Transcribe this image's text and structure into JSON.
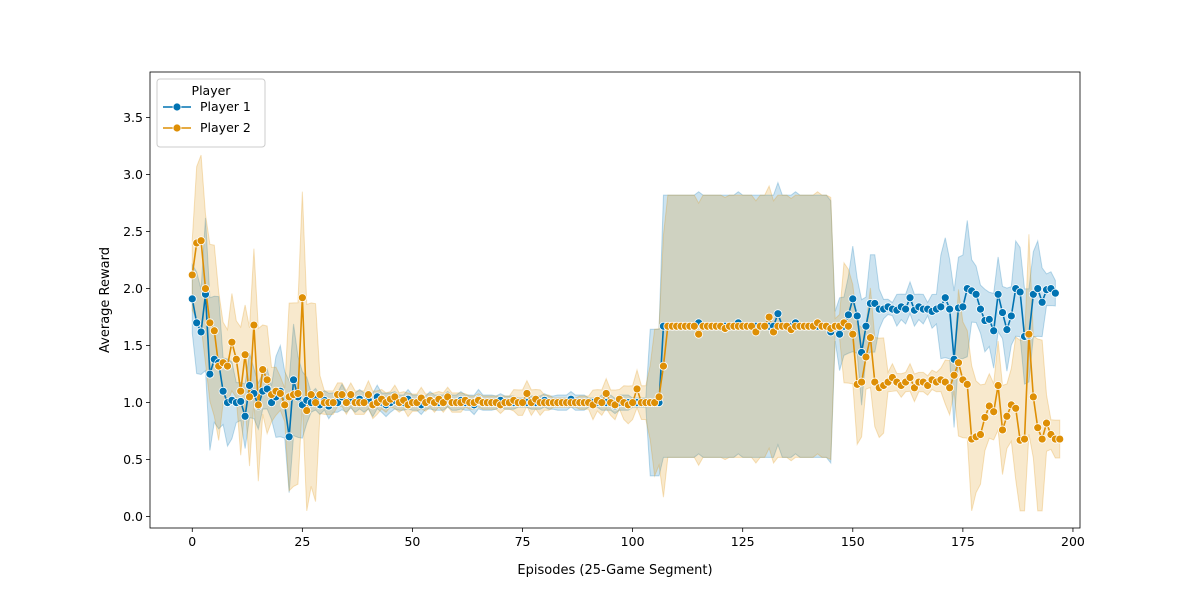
{
  "chart_data": {
    "type": "line",
    "title": "",
    "xlabel": "Episodes (25-Game Segment)",
    "ylabel": "Average Reward",
    "xlim": [
      -9.6,
      201.6
    ],
    "ylim": [
      -0.1,
      3.9
    ],
    "xticks": [
      0,
      25,
      50,
      75,
      100,
      125,
      150,
      175,
      200
    ],
    "yticks": [
      0.0,
      0.5,
      1.0,
      1.5,
      2.0,
      2.5,
      3.0,
      3.5
    ],
    "grid": false,
    "legend": {
      "title": "Player",
      "placement": "top-left"
    },
    "series": [
      {
        "name": "Player 1",
        "color": "#0173b2",
        "values": [
          1.91,
          1.7,
          1.62,
          1.95,
          1.25,
          1.38,
          1.35,
          1.1,
          1.0,
          1.02,
          1.0,
          1.01,
          0.88,
          1.15,
          1.08,
          0.97,
          1.1,
          1.12,
          1.0,
          1.05,
          1.1,
          0.98,
          0.7,
          1.2,
          1.05,
          0.98,
          1.02,
          1.0,
          1.03,
          0.98,
          1.02,
          0.97,
          1.0,
          1.0,
          1.05,
          1.0,
          1.02,
          1.0,
          1.03,
          1.0,
          1.02,
          0.98,
          1.05,
          1.0,
          0.98,
          1.0,
          1.02,
          1.0,
          1.0,
          1.03,
          1.0,
          1.0,
          0.98,
          1.0,
          1.02,
          1.0,
          1.0,
          1.0,
          1.03,
          1.0,
          1.0,
          1.02,
          1.0,
          1.0,
          0.98,
          1.03,
          1.0,
          1.0,
          1.0,
          1.0,
          1.02,
          1.0,
          1.0,
          1.0,
          1.0,
          1.0,
          1.0,
          1.0,
          1.0,
          1.0,
          1.02,
          1.0,
          1.0,
          1.0,
          1.0,
          1.0,
          1.03,
          1.0,
          1.0,
          1.0,
          1.0,
          1.0,
          1.0,
          1.0,
          1.0,
          1.0,
          0.97,
          1.0,
          1.0,
          1.0,
          1.0,
          1.0,
          1.0,
          1.0,
          1.0,
          1.0,
          1.0,
          1.67,
          1.67,
          1.67,
          1.67,
          1.67,
          1.67,
          1.67,
          1.67,
          1.7,
          1.67,
          1.67,
          1.67,
          1.67,
          1.67,
          1.67,
          1.67,
          1.67,
          1.7,
          1.67,
          1.67,
          1.67,
          1.67,
          1.67,
          1.67,
          1.67,
          1.67,
          1.78,
          1.67,
          1.67,
          1.67,
          1.7,
          1.67,
          1.67,
          1.67,
          1.67,
          1.67,
          1.67,
          1.67,
          1.62,
          1.67,
          1.6,
          1.67,
          1.77,
          1.91,
          1.76,
          1.44,
          1.67,
          1.87,
          1.87,
          1.82,
          1.82,
          1.84,
          1.82,
          1.81,
          1.84,
          1.82,
          1.92,
          1.81,
          1.84,
          1.82,
          1.82,
          1.8,
          1.82,
          1.84,
          1.92,
          1.82,
          1.38,
          1.83,
          1.84,
          2.0,
          1.98,
          1.95,
          1.82,
          1.72,
          1.73,
          1.63,
          1.95,
          1.79,
          1.64,
          1.76,
          2.0,
          1.97,
          1.58,
          1.59,
          1.95,
          2.0,
          1.88,
          1.99,
          2.0,
          1.96
        ]
      },
      {
        "name": "Player 2",
        "color": "#de8f05",
        "values": [
          2.12,
          2.4,
          2.42,
          2.0,
          1.7,
          1.63,
          1.32,
          1.35,
          1.32,
          1.53,
          1.38,
          1.1,
          1.42,
          1.05,
          1.68,
          0.98,
          1.29,
          1.2,
          1.07,
          1.1,
          1.08,
          0.98,
          1.05,
          1.07,
          1.08,
          1.92,
          0.93,
          1.07,
          1.0,
          1.07,
          1.0,
          1.0,
          1.0,
          1.07,
          1.07,
          1.0,
          1.07,
          1.0,
          1.0,
          1.0,
          1.07,
          0.98,
          1.0,
          1.03,
          1.0,
          1.03,
          1.05,
          1.0,
          1.02,
          0.98,
          1.0,
          1.0,
          1.04,
          1.0,
          1.02,
          1.0,
          1.03,
          1.0,
          1.05,
          1.0,
          1.0,
          1.0,
          1.02,
          1.0,
          1.0,
          1.02,
          1.0,
          1.0,
          1.0,
          1.0,
          0.98,
          1.0,
          1.0,
          1.02,
          1.0,
          1.0,
          1.08,
          1.0,
          1.03,
          1.0,
          1.0,
          1.0,
          1.0,
          1.0,
          1.0,
          1.0,
          1.0,
          1.0,
          1.0,
          1.0,
          1.0,
          0.98,
          1.02,
          1.0,
          1.08,
          1.0,
          0.98,
          1.03,
          1.0,
          0.98,
          1.0,
          1.12,
          1.0,
          1.0,
          1.0,
          1.0,
          1.05,
          1.32,
          1.67,
          1.67,
          1.67,
          1.67,
          1.67,
          1.67,
          1.67,
          1.6,
          1.67,
          1.67,
          1.67,
          1.67,
          1.67,
          1.65,
          1.67,
          1.67,
          1.67,
          1.67,
          1.67,
          1.67,
          1.62,
          1.67,
          1.67,
          1.75,
          1.62,
          1.67,
          1.67,
          1.67,
          1.64,
          1.67,
          1.67,
          1.67,
          1.67,
          1.67,
          1.7,
          1.67,
          1.67,
          1.65,
          1.67,
          1.67,
          1.7,
          1.67,
          1.6,
          1.16,
          1.18,
          1.4,
          1.57,
          1.18,
          1.13,
          1.15,
          1.18,
          1.22,
          1.18,
          1.15,
          1.18,
          1.22,
          1.13,
          1.18,
          1.18,
          1.15,
          1.2,
          1.18,
          1.2,
          1.18,
          1.13,
          1.24,
          1.35,
          1.2,
          1.16,
          0.68,
          0.7,
          0.72,
          0.87,
          0.97,
          0.92,
          1.15,
          0.76,
          0.88,
          0.98,
          0.95,
          0.67,
          0.68,
          1.6,
          1.05,
          0.78,
          0.68,
          0.82,
          0.72,
          0.68,
          0.68
        ]
      }
    ]
  }
}
